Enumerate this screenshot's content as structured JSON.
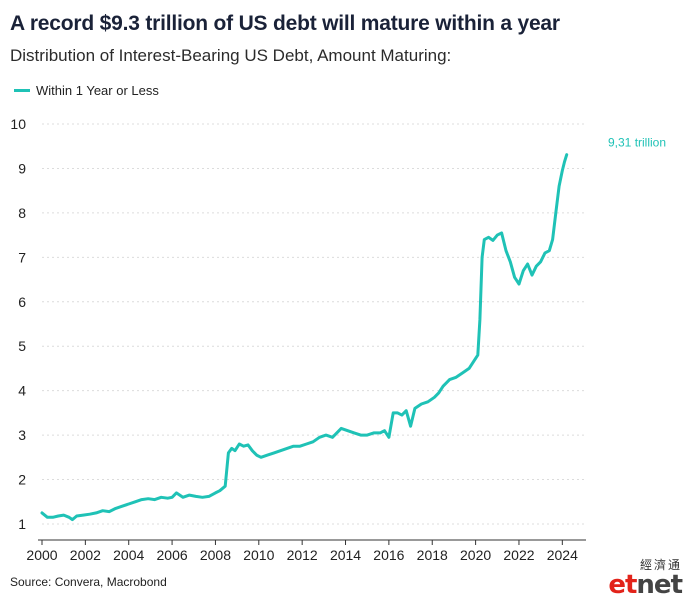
{
  "header": {
    "title": "A record $9.3 trillion of US debt will mature within a year",
    "subtitle": "Distribution of Interest-Bearing US Debt, Amount Maturing:"
  },
  "source": "Source: Convera, Macrobond",
  "logo": {
    "cn": "經濟通",
    "et": "et",
    "net": "net"
  },
  "colors": {
    "series": "#1fc2b6",
    "grid": "#dcdcdc",
    "axis": "#333333"
  },
  "chart_data": {
    "type": "line",
    "title": "A record $9.3 trillion of US debt will mature within a year",
    "subtitle": "Distribution of Interest-Bearing US Debt, Amount Maturing:",
    "xlabel": "",
    "ylabel": "",
    "xlim": [
      2000,
      2025
    ],
    "ylim": [
      1,
      10
    ],
    "x_ticks": [
      "2000",
      "2002",
      "2004",
      "2006",
      "2008",
      "2010",
      "2012",
      "2014",
      "2016",
      "2018",
      "2020",
      "2022",
      "2024"
    ],
    "y_ticks": [
      "1",
      "2",
      "3",
      "4",
      "5",
      "6",
      "7",
      "8",
      "9",
      "10"
    ],
    "grid": "horizontal",
    "legend": "top-left",
    "annotation": {
      "text": "9,31 trillion",
      "x": 2024.2,
      "y": 9.31
    },
    "series": [
      {
        "name": "Within 1 Year or Less",
        "x": [
          2000.0,
          2000.25,
          2000.5,
          2000.75,
          2001.0,
          2001.25,
          2001.4,
          2001.6,
          2001.9,
          2002.2,
          2002.5,
          2002.8,
          2003.1,
          2003.4,
          2003.7,
          2004.0,
          2004.3,
          2004.6,
          2004.9,
          2005.2,
          2005.5,
          2005.8,
          2006.0,
          2006.2,
          2006.5,
          2006.8,
          2007.1,
          2007.4,
          2007.7,
          2008.0,
          2008.2,
          2008.45,
          2008.6,
          2008.75,
          2008.9,
          2009.1,
          2009.3,
          2009.5,
          2009.7,
          2009.9,
          2010.1,
          2010.4,
          2010.7,
          2011.0,
          2011.3,
          2011.6,
          2011.9,
          2012.2,
          2012.5,
          2012.8,
          2013.1,
          2013.4,
          2013.6,
          2013.8,
          2014.1,
          2014.4,
          2014.7,
          2015.0,
          2015.3,
          2015.6,
          2015.8,
          2016.0,
          2016.2,
          2016.4,
          2016.6,
          2016.8,
          2017.0,
          2017.2,
          2017.5,
          2017.8,
          2018.1,
          2018.3,
          2018.5,
          2018.8,
          2019.1,
          2019.4,
          2019.7,
          2019.9,
          2020.1,
          2020.2,
          2020.3,
          2020.4,
          2020.6,
          2020.8,
          2021.0,
          2021.2,
          2021.4,
          2021.6,
          2021.8,
          2022.0,
          2022.2,
          2022.4,
          2022.6,
          2022.8,
          2023.0,
          2023.2,
          2023.4,
          2023.55,
          2023.7,
          2023.85,
          2024.0,
          2024.1,
          2024.2
        ],
        "values": [
          1.25,
          1.15,
          1.15,
          1.18,
          1.2,
          1.15,
          1.1,
          1.18,
          1.2,
          1.22,
          1.25,
          1.3,
          1.28,
          1.35,
          1.4,
          1.45,
          1.5,
          1.55,
          1.57,
          1.55,
          1.6,
          1.58,
          1.6,
          1.7,
          1.6,
          1.65,
          1.62,
          1.6,
          1.62,
          1.7,
          1.75,
          1.85,
          2.6,
          2.7,
          2.65,
          2.8,
          2.75,
          2.78,
          2.65,
          2.55,
          2.5,
          2.55,
          2.6,
          2.65,
          2.7,
          2.75,
          2.75,
          2.8,
          2.85,
          2.95,
          3.0,
          2.95,
          3.05,
          3.15,
          3.1,
          3.05,
          3.0,
          3.0,
          3.05,
          3.05,
          3.1,
          2.95,
          3.5,
          3.5,
          3.45,
          3.55,
          3.2,
          3.6,
          3.7,
          3.75,
          3.85,
          3.95,
          4.1,
          4.25,
          4.3,
          4.4,
          4.5,
          4.65,
          4.8,
          5.6,
          7.0,
          7.4,
          7.45,
          7.38,
          7.5,
          7.55,
          7.15,
          6.9,
          6.55,
          6.4,
          6.7,
          6.85,
          6.6,
          6.8,
          6.9,
          7.1,
          7.15,
          7.4,
          8.0,
          8.6,
          8.95,
          9.15,
          9.31
        ]
      }
    ]
  }
}
